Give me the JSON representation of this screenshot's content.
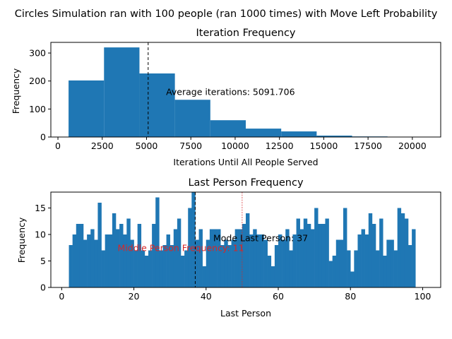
{
  "suptitle": "Circles Simulation ran with 100 people (ran 1000 times) with Move Left Probability",
  "colors": {
    "bar": "#1f77b4",
    "annotation_red": "#d62728",
    "mean_line": "#000000"
  },
  "chart_data": [
    {
      "type": "bar",
      "title": "Iteration Frequency",
      "xlabel": "Iterations Until All People Served",
      "ylabel": "Frequency",
      "xlim": [
        -400,
        21600
      ],
      "ylim": [
        0,
        338
      ],
      "xticks": [
        0,
        2500,
        5000,
        7500,
        10000,
        12500,
        15000,
        17500,
        20000
      ],
      "yticks": [
        0,
        100,
        200,
        300
      ],
      "bins": [
        {
          "x0": 600,
          "x1": 2600,
          "value": 202
        },
        {
          "x0": 2600,
          "x1": 4600,
          "value": 320
        },
        {
          "x0": 4600,
          "x1": 6600,
          "value": 227
        },
        {
          "x0": 6600,
          "x1": 8600,
          "value": 133
        },
        {
          "x0": 8600,
          "x1": 10600,
          "value": 60
        },
        {
          "x0": 10600,
          "x1": 12600,
          "value": 30
        },
        {
          "x0": 12600,
          "x1": 14600,
          "value": 20
        },
        {
          "x0": 14600,
          "x1": 16600,
          "value": 5
        },
        {
          "x0": 16600,
          "x1": 18600,
          "value": 2
        },
        {
          "x0": 18600,
          "x1": 20600,
          "value": 1
        }
      ],
      "mean_line": 5091.706,
      "annotation": "Average iterations: 5091.706"
    },
    {
      "type": "bar",
      "title": "Last Person Frequency",
      "xlabel": "Last Person",
      "ylabel": "Frequency",
      "xlim": [
        -3,
        105
      ],
      "ylim": [
        0,
        18
      ],
      "xticks": [
        0,
        20,
        40,
        60,
        80,
        100
      ],
      "yticks": [
        0,
        5,
        10,
        15
      ],
      "bin_start": 2,
      "bin_width": 1,
      "values": [
        8,
        10,
        12,
        12,
        9,
        10,
        11,
        9,
        16,
        7,
        10,
        10,
        14,
        11,
        12,
        10,
        13,
        9,
        7,
        12,
        7,
        6,
        7,
        12,
        17,
        7,
        8,
        10,
        8,
        11,
        13,
        6,
        7,
        15,
        18,
        9,
        11,
        4,
        9,
        11,
        11,
        11,
        8,
        9,
        8,
        9,
        11,
        11,
        12,
        14,
        10,
        11,
        10,
        10,
        9,
        6,
        4,
        8,
        10,
        9,
        11,
        7,
        10,
        13,
        11,
        13,
        12,
        11,
        15,
        12,
        12,
        13,
        5,
        6,
        9,
        9,
        15,
        7,
        3,
        7,
        10,
        11,
        10,
        14,
        12,
        7,
        13,
        6,
        9,
        9,
        7,
        15,
        14,
        13,
        8,
        11
      ],
      "mode_line": 37,
      "middle_line": 50,
      "annotation_mode": "Mode Last Person: 37",
      "annotation_middle": "Middle Person Frequency: 11"
    }
  ]
}
